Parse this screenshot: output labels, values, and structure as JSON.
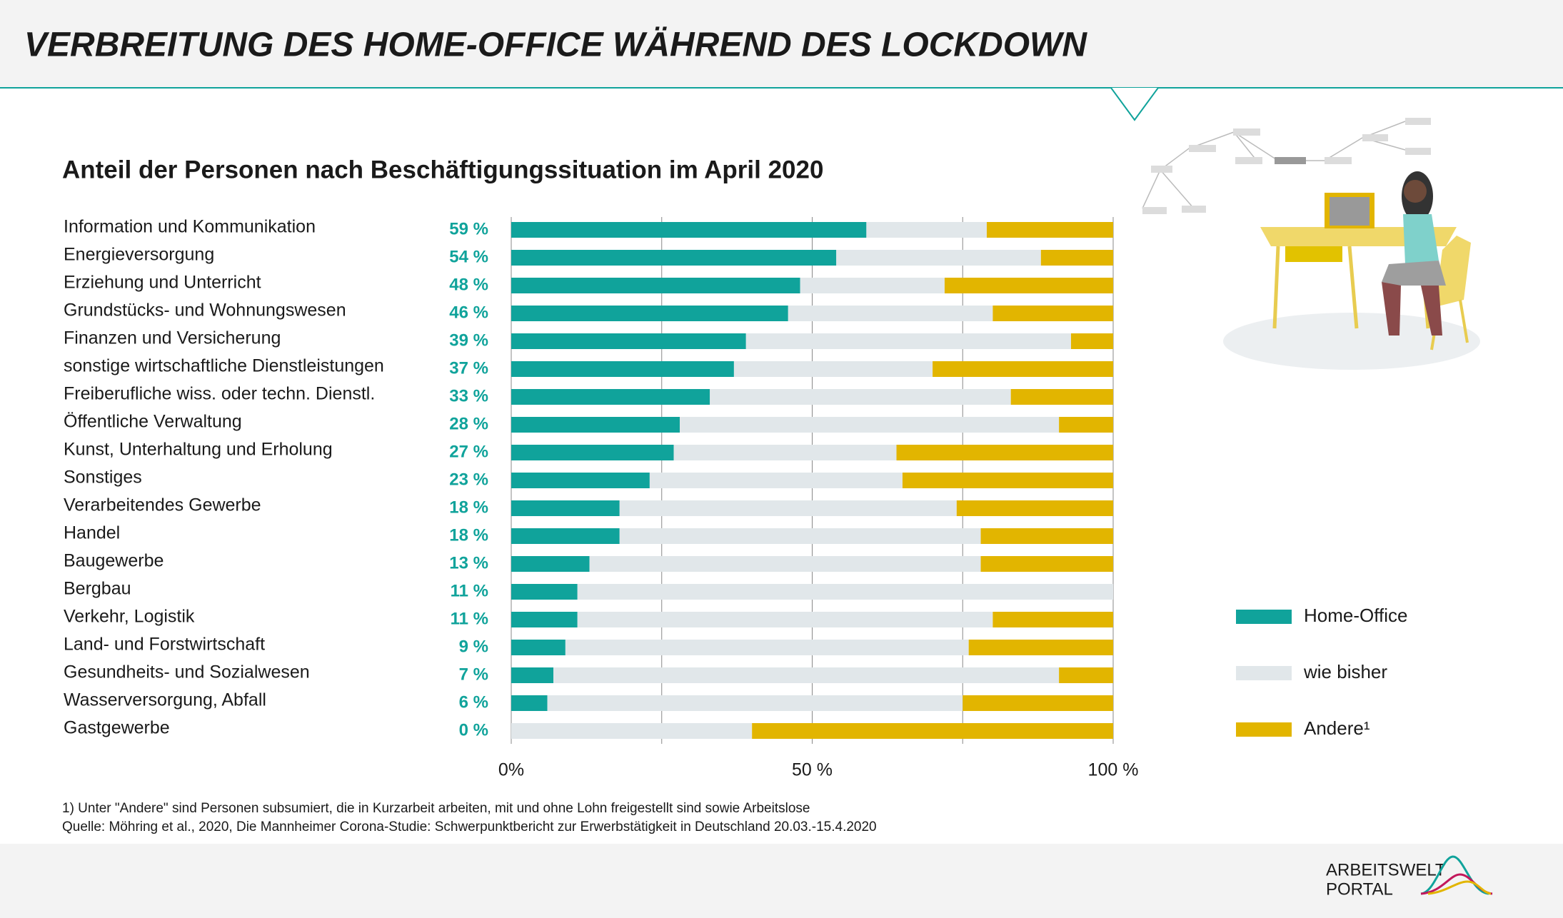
{
  "chart_data": {
    "type": "stacked-barh",
    "title": "VERBREITUNG DES HOME-OFFICE WÄHREND DES LOCKDOWN",
    "subtitle": "Anteil der Personen nach Beschäftigungssituation im April 2020",
    "categories": [
      "Information und Kommunikation",
      "Energieversorgung",
      "Erziehung und Unterricht",
      "Grundstücks- und Wohnungswesen",
      "Finanzen und Versicherung",
      "sonstige wirtschaftliche Dienstleistungen",
      "Freiberufliche wiss. oder techn. Dienstl.",
      "Öffentliche Verwaltung",
      "Kunst, Unterhaltung und Erholung",
      "Sonstiges",
      "Verarbeitendes Gewerbe",
      "Handel",
      "Baugewerbe",
      "Bergbau",
      "Verkehr, Logistik",
      "Land- und Forstwirtschaft",
      "Gesundheits- und Sozialwesen",
      "Wasserversorgung, Abfall",
      "Gastgewerbe"
    ],
    "series": [
      {
        "name": "Home-Office",
        "color": "#10a39b",
        "values": [
          59,
          54,
          48,
          46,
          39,
          37,
          33,
          28,
          27,
          23,
          18,
          18,
          13,
          11,
          11,
          9,
          7,
          6,
          0
        ],
        "value_labels": [
          "59 %",
          "54 %",
          "48 %",
          "46 %",
          "39 %",
          "37 %",
          "33 %",
          "28 %",
          "27 %",
          "23 %",
          "18 %",
          "18 %",
          "13 %",
          "11 %",
          "11 %",
          "9 %",
          "7 %",
          "6 %",
          "0 %"
        ]
      },
      {
        "name": "wie bisher",
        "color": "#e1e7ea",
        "values": [
          20,
          34,
          24,
          34,
          54,
          33,
          50,
          63,
          37,
          42,
          56,
          60,
          65,
          89,
          69,
          67,
          84,
          69,
          40
        ]
      },
      {
        "name": "Andere¹",
        "color": "#e2b500",
        "values": [
          21,
          12,
          28,
          20,
          7,
          30,
          17,
          9,
          36,
          35,
          26,
          22,
          22,
          0,
          20,
          24,
          9,
          25,
          60
        ]
      }
    ],
    "xlim": [
      0,
      100
    ],
    "xticks": [
      {
        "value": 0,
        "label": "0%"
      },
      {
        "value": 25,
        "label": null
      },
      {
        "value": 50,
        "label": "50 %"
      },
      {
        "value": 75,
        "label": null
      },
      {
        "value": 100,
        "label": "100 %"
      }
    ],
    "grid": true,
    "legend": "right",
    "footnotes": [
      "1) Unter \"Andere\" sind Personen subsumiert, die in Kurzarbeit arbeiten, mit und ohne Lohn freigestellt sind sowie Arbeitslose",
      "Quelle: Möhring et al., 2020, Die Mannheimer Corona-Studie: Schwerpunktbericht zur Erwerbstätigkeit in Deutschland 20.03.-15.4.2020"
    ],
    "logo": [
      "ARBEITSWELT",
      "PORTAL"
    ]
  }
}
